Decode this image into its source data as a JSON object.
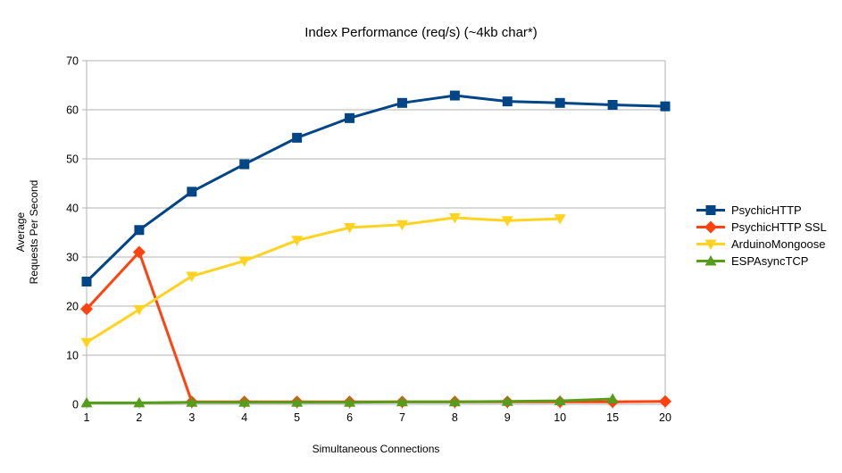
{
  "page": {
    "background": "#ffffff"
  },
  "chart_data": {
    "type": "line",
    "title": "Index Performance (req/s) (~4kb char*)",
    "xlabel": "Simultaneous Connections",
    "ylabel_line1": "Average",
    "ylabel_line2": "Requests Per Second",
    "categories": [
      "1",
      "2",
      "3",
      "4",
      "5",
      "6",
      "7",
      "8",
      "9",
      "10",
      "15",
      "20"
    ],
    "yticks": [
      0,
      10,
      20,
      30,
      40,
      50,
      60,
      70
    ],
    "ylim": [
      0,
      70
    ],
    "grid": "horizontal-on",
    "legend_position": "right",
    "axis_color": "#b3b3b3",
    "grid_color": "#b3b3b3",
    "text_color": "#000000",
    "series": [
      {
        "name": "PsychicHTTP",
        "color": "#004586",
        "marker": "square",
        "values": [
          25.0,
          35.5,
          43.3,
          48.9,
          54.3,
          58.3,
          61.4,
          62.9,
          61.7,
          61.4,
          61.0,
          60.7
        ]
      },
      {
        "name": "PsychicHTTP SSL",
        "color": "#ff420e",
        "marker": "diamond",
        "values": [
          19.4,
          31.0,
          0.5,
          0.5,
          0.5,
          0.5,
          0.5,
          0.5,
          0.5,
          0.5,
          0.5,
          0.6
        ]
      },
      {
        "name": "ArduinoMongoose",
        "color": "#ffd320",
        "marker": "triangle-down",
        "values": [
          12.6,
          19.3,
          26.1,
          29.2,
          33.4,
          36.0,
          36.6,
          38.0,
          37.4,
          37.8,
          null,
          null
        ]
      },
      {
        "name": "ESPAsyncTCP",
        "color": "#579d1c",
        "marker": "triangle-up",
        "values": [
          0.3,
          0.3,
          0.4,
          0.4,
          0.4,
          0.4,
          0.5,
          0.5,
          0.6,
          0.7,
          1.1,
          null
        ]
      }
    ]
  }
}
